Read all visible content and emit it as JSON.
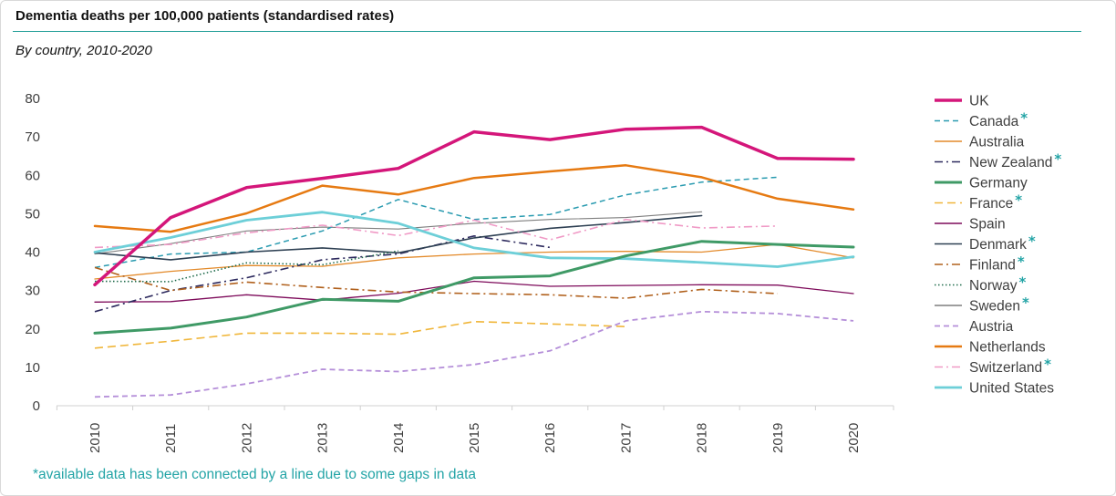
{
  "header": {
    "title": "Dementia deaths per 100,000 patients (standardised rates)",
    "subtitle": "By country, 2010-2020"
  },
  "footnote": "*available data has been connected by a line due to some gaps in data",
  "chart_data": {
    "type": "line",
    "title": "Dementia deaths per 100,000 patients (standardised rates)",
    "subtitle": "By country, 2010-2020",
    "xlabel": "",
    "ylabel": "",
    "categories": [
      "2010",
      "2011",
      "2012",
      "2013",
      "2014",
      "2015",
      "2016",
      "2017",
      "2018",
      "2019",
      "2020"
    ],
    "ylim": [
      0,
      80
    ],
    "yticks": [
      0,
      10,
      20,
      30,
      40,
      50,
      60,
      70,
      80
    ],
    "grid": false,
    "legend_position": "right",
    "series": [
      {
        "name": "UK",
        "color": "#d4167a",
        "style": "solid",
        "width": 3.5,
        "star": false,
        "values": [
          31.5,
          49,
          56.8,
          59.2,
          61.8,
          71.3,
          69.3,
          72.0,
          72.5,
          64.4,
          64.2
        ]
      },
      {
        "name": "Canada",
        "color": "#2a9bb0",
        "style": "dashed",
        "width": 1.5,
        "star": true,
        "values": [
          36,
          39.5,
          40,
          45.5,
          53.7,
          48.5,
          49.8,
          54.9,
          58.2,
          59.5,
          null
        ]
      },
      {
        "name": "Australia",
        "color": "#e38a2a",
        "style": "solid",
        "width": 1.3,
        "star": false,
        "values": [
          33,
          35,
          36.5,
          36.3,
          38.5,
          39.5,
          40.0,
          40.2,
          40.0,
          42.0,
          38.5
        ]
      },
      {
        "name": "New Zealand",
        "color": "#2d2a5e",
        "style": "dashdot",
        "width": 1.6,
        "star": true,
        "values": [
          24.5,
          30,
          33.3,
          38,
          39.5,
          44.2,
          41.2,
          null,
          null,
          null,
          null
        ]
      },
      {
        "name": "Germany",
        "color": "#3f9a66",
        "style": "solid",
        "width": 3.0,
        "star": false,
        "values": [
          18.9,
          20.2,
          23.1,
          27.7,
          27.2,
          33.3,
          33.8,
          39,
          42.8,
          42.0,
          41.3
        ]
      },
      {
        "name": "France",
        "color": "#f0b63a",
        "style": "dashed-long",
        "width": 1.6,
        "star": true,
        "values": [
          15,
          16.8,
          18.9,
          18.9,
          18.6,
          21.9,
          21.3,
          20.6,
          null,
          null,
          null
        ]
      },
      {
        "name": "Spain",
        "color": "#7d0a5a",
        "style": "solid",
        "width": 1.3,
        "star": false,
        "values": [
          27,
          27.1,
          28.9,
          27.5,
          29.3,
          32.4,
          31.1,
          31.3,
          31.5,
          31.4,
          29.2
        ]
      },
      {
        "name": "Denmark",
        "color": "#2e4053",
        "style": "solid",
        "width": 1.6,
        "star": true,
        "values": [
          39.8,
          38,
          40,
          41.1,
          39.8,
          43.7,
          46.2,
          47.7,
          49.5,
          null,
          null
        ]
      },
      {
        "name": "Finland",
        "color": "#b0601c",
        "style": "dashdot",
        "width": 1.6,
        "star": true,
        "values": [
          36,
          30,
          32.2,
          30.8,
          29.6,
          29.2,
          28.9,
          28.0,
          30.3,
          29.2,
          null
        ]
      },
      {
        "name": "Norway",
        "color": "#1f6b4b",
        "style": "dotted",
        "width": 1.6,
        "star": true,
        "values": [
          32.4,
          32.3,
          37.2,
          36.7,
          40.3,
          null,
          null,
          null,
          null,
          null,
          null
        ]
      },
      {
        "name": "Sweden",
        "color": "#7f7f7f",
        "style": "solid",
        "width": 1.1,
        "star": true,
        "values": [
          39.5,
          42.2,
          45.5,
          46.5,
          46,
          47.5,
          48.5,
          49,
          50.5,
          null,
          null
        ]
      },
      {
        "name": "Austria",
        "color": "#b58fd9",
        "style": "dashed",
        "width": 1.8,
        "star": false,
        "values": [
          2.3,
          2.8,
          5.7,
          9.5,
          8.9,
          10.7,
          14.3,
          22.1,
          24.5,
          24,
          22.1
        ]
      },
      {
        "name": "Netherlands",
        "color": "#e67a12",
        "style": "solid",
        "width": 2.5,
        "star": false,
        "values": [
          46.8,
          45.3,
          50.1,
          57.3,
          55,
          59.3,
          61.0,
          62.6,
          59.5,
          53.9,
          51.1
        ]
      },
      {
        "name": "Switzerland",
        "color": "#f09ac6",
        "style": "dashdot",
        "width": 1.6,
        "star": true,
        "values": [
          41.2,
          42,
          45,
          47,
          44.3,
          48.3,
          43.2,
          48.5,
          46.3,
          46.8,
          null
        ]
      },
      {
        "name": "United States",
        "color": "#6dcfd8",
        "style": "solid",
        "width": 2.8,
        "star": false,
        "values": [
          40,
          43.8,
          48.3,
          50.4,
          47.5,
          41.1,
          38.5,
          38.3,
          37.3,
          36.2,
          38.8
        ]
      }
    ]
  }
}
